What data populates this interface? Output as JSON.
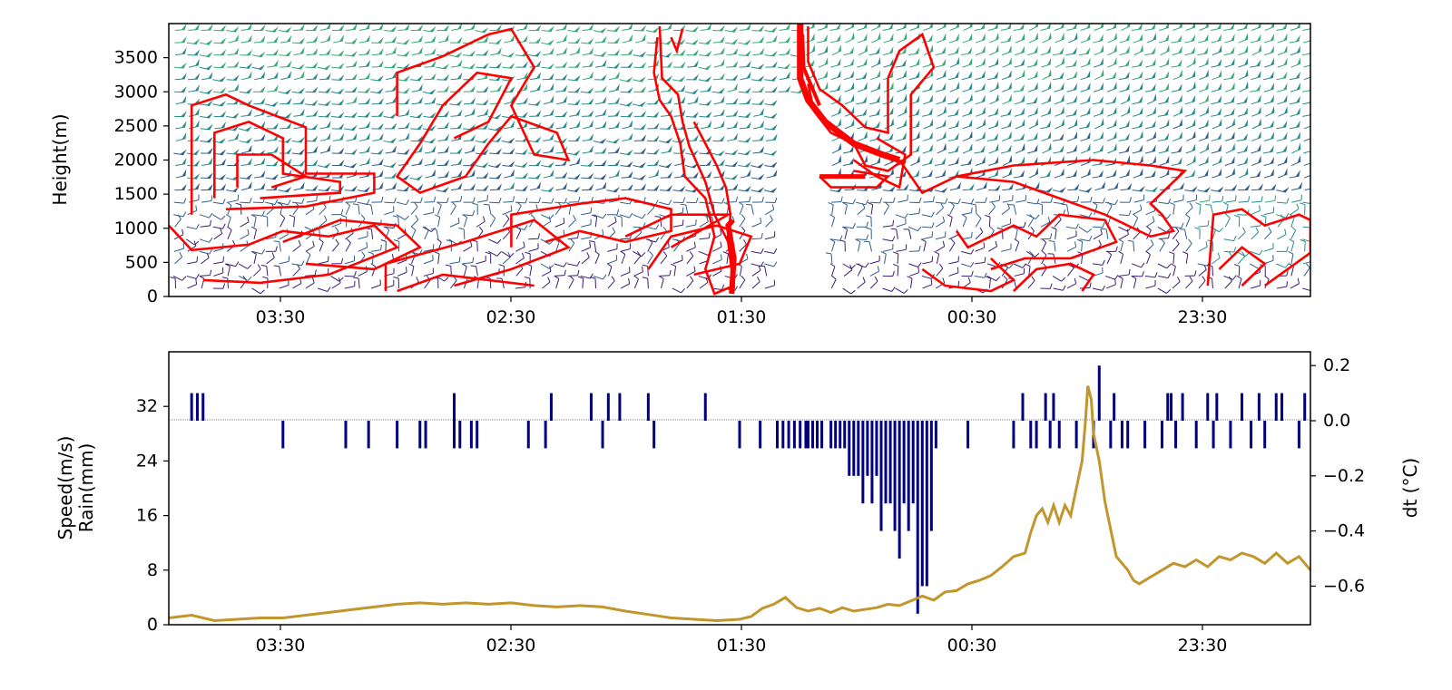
{
  "chart_data": [
    {
      "type": "contour",
      "description_kind": "wind-barb profile with red contour overlay",
      "ylabel": "Height(m)",
      "y_ticks": [
        "0",
        "500",
        "1000",
        "1500",
        "2000",
        "2500",
        "3000",
        "3500"
      ],
      "ylim": [
        0,
        4000
      ],
      "x_ticks": [
        "03:30",
        "02:30",
        "01:30",
        "00:30",
        "23:30"
      ],
      "x_axis_direction": "time decreasing left to right",
      "barb_colormap": [
        "#3b1f73",
        "#2f5f8a",
        "#2a8a8a",
        "#38a877",
        "#8fd14f"
      ],
      "contour_color": "#ff0000",
      "gap_start_x": 0.53,
      "gap_end_x": 0.57
    },
    {
      "type": "bar+line",
      "ylabel_left": [
        "Speed(m/s)",
        "Rain(mm)"
      ],
      "ylabel_right": "dt (°C)",
      "left_ticks": [
        "0",
        "8",
        "16",
        "24",
        "32"
      ],
      "left_ylim": [
        0,
        40
      ],
      "right_ticks": [
        "0.2",
        "0.0",
        "−0.2",
        "−0.4",
        "−0.6"
      ],
      "right_ylim": [
        -0.74,
        0.25
      ],
      "x_ticks": [
        "03:30",
        "02:30",
        "01:30",
        "00:30",
        "23:30"
      ],
      "colors": {
        "speed_line": "#c1962c",
        "dt_bars": "#000080"
      },
      "series": [
        {
          "name": "Speed",
          "axis": "left",
          "points": [
            [
              0.0,
              1.0
            ],
            [
              0.02,
              1.4
            ],
            [
              0.04,
              0.6
            ],
            [
              0.06,
              0.8
            ],
            [
              0.08,
              1.0
            ],
            [
              0.1,
              1.0
            ],
            [
              0.12,
              1.4
            ],
            [
              0.14,
              1.8
            ],
            [
              0.16,
              2.2
            ],
            [
              0.18,
              2.6
            ],
            [
              0.2,
              3.0
            ],
            [
              0.22,
              3.2
            ],
            [
              0.24,
              3.0
            ],
            [
              0.26,
              3.2
            ],
            [
              0.28,
              3.0
            ],
            [
              0.3,
              3.2
            ],
            [
              0.32,
              2.8
            ],
            [
              0.34,
              2.6
            ],
            [
              0.36,
              2.8
            ],
            [
              0.38,
              2.6
            ],
            [
              0.4,
              2.0
            ],
            [
              0.42,
              1.5
            ],
            [
              0.44,
              1.0
            ],
            [
              0.46,
              0.8
            ],
            [
              0.48,
              0.6
            ],
            [
              0.5,
              0.8
            ],
            [
              0.51,
              1.2
            ],
            [
              0.52,
              2.4
            ],
            [
              0.53,
              3.0
            ],
            [
              0.54,
              4.0
            ],
            [
              0.55,
              2.5
            ],
            [
              0.56,
              2.0
            ],
            [
              0.57,
              2.4
            ],
            [
              0.58,
              1.8
            ],
            [
              0.59,
              2.5
            ],
            [
              0.6,
              2.0
            ],
            [
              0.62,
              2.5
            ],
            [
              0.63,
              3.0
            ],
            [
              0.64,
              2.8
            ],
            [
              0.65,
              3.5
            ],
            [
              0.66,
              4.2
            ],
            [
              0.67,
              3.6
            ],
            [
              0.68,
              4.8
            ],
            [
              0.69,
              5.0
            ],
            [
              0.7,
              6.0
            ],
            [
              0.71,
              6.5
            ],
            [
              0.72,
              7.2
            ],
            [
              0.73,
              8.5
            ],
            [
              0.74,
              10.0
            ],
            [
              0.75,
              10.5
            ],
            [
              0.755,
              13.5
            ],
            [
              0.76,
              16.0
            ],
            [
              0.765,
              17.0
            ],
            [
              0.77,
              15.0
            ],
            [
              0.775,
              17.5
            ],
            [
              0.78,
              15.0
            ],
            [
              0.785,
              17.5
            ],
            [
              0.79,
              16.0
            ],
            [
              0.795,
              20.0
            ],
            [
              0.8,
              24.0
            ],
            [
              0.803,
              30.0
            ],
            [
              0.805,
              35.0
            ],
            [
              0.808,
              33.0
            ],
            [
              0.81,
              28.0
            ],
            [
              0.815,
              24.0
            ],
            [
              0.82,
              18.0
            ],
            [
              0.825,
              14.0
            ],
            [
              0.83,
              10.0
            ],
            [
              0.835,
              9.0
            ],
            [
              0.84,
              8.0
            ],
            [
              0.845,
              6.5
            ],
            [
              0.85,
              6.0
            ],
            [
              0.86,
              7.0
            ],
            [
              0.87,
              8.0
            ],
            [
              0.88,
              9.0
            ],
            [
              0.89,
              8.5
            ],
            [
              0.9,
              9.5
            ],
            [
              0.91,
              8.5
            ],
            [
              0.92,
              10.0
            ],
            [
              0.93,
              9.5
            ],
            [
              0.94,
              10.5
            ],
            [
              0.95,
              10.0
            ],
            [
              0.96,
              9.0
            ],
            [
              0.97,
              10.5
            ],
            [
              0.98,
              9.0
            ],
            [
              0.99,
              10.0
            ],
            [
              1.0,
              8.0
            ]
          ]
        },
        {
          "name": "dt",
          "axis": "right",
          "bars": [
            [
              0.02,
              0.1
            ],
            [
              0.025,
              0.1
            ],
            [
              0.03,
              0.1
            ],
            [
              0.1,
              -0.1
            ],
            [
              0.155,
              -0.1
            ],
            [
              0.175,
              -0.1
            ],
            [
              0.2,
              -0.1
            ],
            [
              0.22,
              -0.1
            ],
            [
              0.225,
              -0.1
            ],
            [
              0.25,
              0.1
            ],
            [
              0.25,
              -0.1
            ],
            [
              0.255,
              -0.1
            ],
            [
              0.265,
              -0.1
            ],
            [
              0.27,
              -0.1
            ],
            [
              0.315,
              -0.1
            ],
            [
              0.33,
              -0.1
            ],
            [
              0.335,
              0.1
            ],
            [
              0.37,
              0.1
            ],
            [
              0.38,
              -0.1
            ],
            [
              0.385,
              0.1
            ],
            [
              0.395,
              0.1
            ],
            [
              0.42,
              0.1
            ],
            [
              0.425,
              -0.1
            ],
            [
              0.47,
              0.1
            ],
            [
              0.5,
              -0.1
            ],
            [
              0.518,
              -0.1
            ],
            [
              0.533,
              -0.1
            ],
            [
              0.538,
              -0.1
            ],
            [
              0.543,
              -0.1
            ],
            [
              0.548,
              -0.1
            ],
            [
              0.553,
              -0.1
            ],
            [
              0.558,
              -0.1
            ],
            [
              0.56,
              -0.1
            ],
            [
              0.564,
              -0.1
            ],
            [
              0.568,
              -0.1
            ],
            [
              0.572,
              -0.1
            ],
            [
              0.58,
              -0.1
            ],
            [
              0.584,
              -0.1
            ],
            [
              0.588,
              -0.1
            ],
            [
              0.592,
              -0.1
            ],
            [
              0.596,
              -0.2
            ],
            [
              0.6,
              -0.2
            ],
            [
              0.604,
              -0.2
            ],
            [
              0.608,
              -0.3
            ],
            [
              0.612,
              -0.2
            ],
            [
              0.616,
              -0.3
            ],
            [
              0.62,
              -0.2
            ],
            [
              0.624,
              -0.4
            ],
            [
              0.628,
              -0.3
            ],
            [
              0.632,
              -0.3
            ],
            [
              0.636,
              -0.4
            ],
            [
              0.64,
              -0.5
            ],
            [
              0.644,
              -0.3
            ],
            [
              0.648,
              -0.4
            ],
            [
              0.652,
              -0.3
            ],
            [
              0.656,
              -0.7
            ],
            [
              0.66,
              -0.6
            ],
            [
              0.664,
              -0.6
            ],
            [
              0.668,
              -0.4
            ],
            [
              0.672,
              -0.1
            ],
            [
              0.7,
              -0.1
            ],
            [
              0.74,
              -0.1
            ],
            [
              0.748,
              0.1
            ],
            [
              0.755,
              -0.1
            ],
            [
              0.76,
              -0.1
            ],
            [
              0.768,
              0.1
            ],
            [
              0.772,
              -0.1
            ],
            [
              0.775,
              0.1
            ],
            [
              0.78,
              -0.1
            ],
            [
              0.795,
              -0.1
            ],
            [
              0.81,
              -0.1
            ],
            [
              0.815,
              0.2
            ],
            [
              0.825,
              -0.1
            ],
            [
              0.828,
              0.1
            ],
            [
              0.835,
              -0.1
            ],
            [
              0.84,
              -0.1
            ],
            [
              0.855,
              -0.1
            ],
            [
              0.87,
              -0.1
            ],
            [
              0.875,
              0.1
            ],
            [
              0.878,
              0.1
            ],
            [
              0.882,
              -0.1
            ],
            [
              0.888,
              0.1
            ],
            [
              0.9,
              -0.1
            ],
            [
              0.91,
              0.1
            ],
            [
              0.915,
              -0.1
            ],
            [
              0.918,
              0.1
            ],
            [
              0.93,
              -0.1
            ],
            [
              0.94,
              0.1
            ],
            [
              0.948,
              -0.1
            ],
            [
              0.955,
              0.1
            ],
            [
              0.96,
              -0.1
            ],
            [
              0.97,
              0.1
            ],
            [
              0.975,
              0.1
            ],
            [
              0.99,
              -0.1
            ],
            [
              0.995,
              0.1
            ]
          ]
        }
      ]
    }
  ]
}
